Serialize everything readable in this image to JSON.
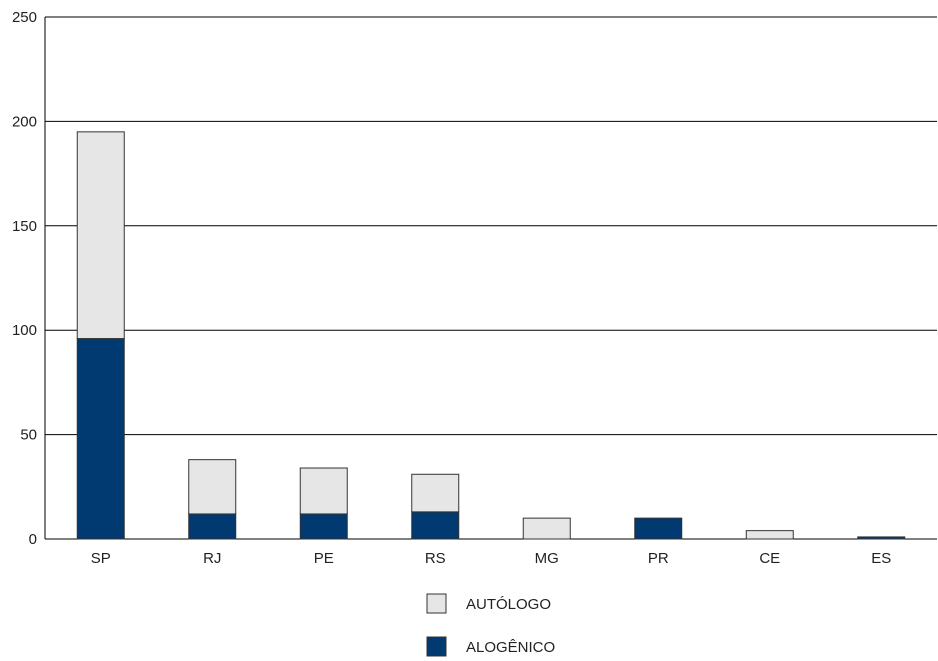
{
  "chart_data": {
    "type": "bar",
    "stacked": true,
    "categories": [
      "SP",
      "RJ",
      "PE",
      "RS",
      "MG",
      "PR",
      "CE",
      "ES"
    ],
    "series": [
      {
        "name": "ALOGÊNICO",
        "values": [
          96,
          12,
          12,
          13,
          0,
          10,
          0,
          1
        ],
        "color": "#003a70"
      },
      {
        "name": "AUTÓLOGO",
        "values": [
          99,
          26,
          22,
          18,
          10,
          0,
          4,
          0
        ],
        "color": "#e6e6e6"
      }
    ],
    "title": "",
    "xlabel": "",
    "ylabel": "",
    "ylim": [
      0,
      250
    ],
    "yticks": [
      0,
      50,
      100,
      150,
      200,
      250
    ],
    "grid": true,
    "legend": {
      "placement": "bottom-center",
      "order": [
        "AUTÓLOGO",
        "ALOGÊNICO"
      ]
    }
  }
}
